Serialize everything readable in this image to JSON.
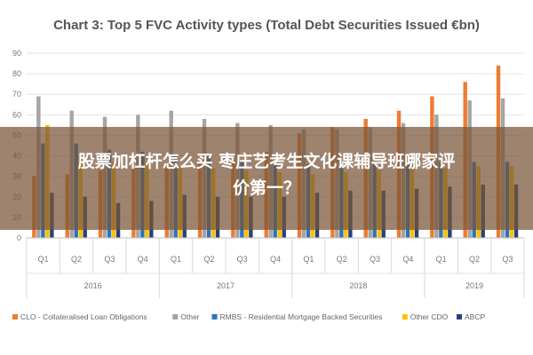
{
  "chart_data": {
    "type": "bar",
    "title": "Chart 3: Top 5 FVC Activity types (Total Debt Securities Issued €bn)",
    "ylim": [
      0,
      90
    ],
    "yticks": [
      0,
      10,
      20,
      30,
      40,
      50,
      60,
      70,
      80,
      90
    ],
    "categories": [
      "Q1",
      "Q2",
      "Q3",
      "Q4",
      "Q1",
      "Q2",
      "Q3",
      "Q4",
      "Q1",
      "Q2",
      "Q3",
      "Q4",
      "Q1",
      "Q2",
      "Q3"
    ],
    "year_groups": [
      {
        "label": "2016",
        "count": 4
      },
      {
        "label": "2017",
        "count": 4
      },
      {
        "label": "2018",
        "count": 4
      },
      {
        "label": "2019",
        "count": 3
      }
    ],
    "series": [
      {
        "name": "CLO - Collateralised Loan Obligations",
        "color": "#ED7D31",
        "values": [
          30,
          31,
          33,
          34,
          35,
          36,
          38,
          42,
          51,
          54,
          58,
          62,
          69,
          76,
          84
        ]
      },
      {
        "name": "Other",
        "color": "#A5A5A5",
        "values": [
          69,
          62,
          59,
          60,
          62,
          58,
          56,
          55,
          53,
          53,
          54,
          56,
          60,
          67,
          68
        ]
      },
      {
        "name": "RMBS - Residential Mortgage Backed Securities",
        "color": "#2E75B6",
        "values": [
          46,
          46,
          43,
          42,
          40,
          40,
          38,
          36,
          36,
          36,
          37,
          37,
          37,
          37,
          37
        ]
      },
      {
        "name": "Other CDO",
        "color": "#FFC000",
        "values": [
          55,
          40,
          37,
          36,
          34,
          34,
          33,
          32,
          31,
          32,
          33,
          34,
          34,
          35,
          35
        ]
      },
      {
        "name": "ABCP",
        "color": "#264478",
        "values": [
          22,
          20,
          17,
          18,
          21,
          20,
          20,
          20,
          22,
          23,
          23,
          24,
          25,
          26,
          26
        ]
      }
    ]
  },
  "overlay": {
    "line1": "股票加杠杆怎么买 枣庄艺考生文化课辅导班哪家评",
    "line2": "价第一？"
  }
}
